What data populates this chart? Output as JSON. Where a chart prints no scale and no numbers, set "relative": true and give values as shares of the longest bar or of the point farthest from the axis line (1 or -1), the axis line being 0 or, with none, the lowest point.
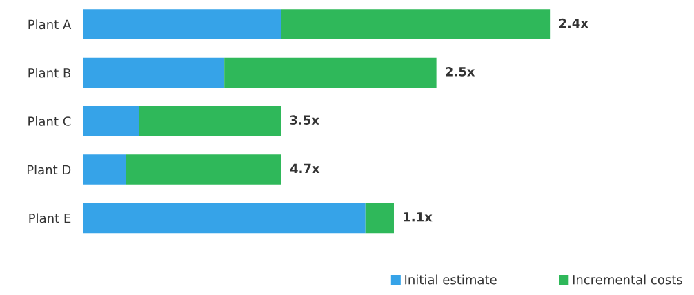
{
  "chart_data": {
    "type": "bar",
    "orientation": "horizontal",
    "stacked": true,
    "relative": true,
    "categories": [
      "Plant A",
      "Plant B",
      "Plant C",
      "Plant D",
      "Plant E"
    ],
    "series": [
      {
        "name": "Initial estimate",
        "color": "#36a3e8",
        "values": [
          0.425,
          0.303,
          0.121,
          0.092,
          0.605
        ]
      },
      {
        "name": "Incremental costs",
        "color": "#2fb85a",
        "values": [
          0.575,
          0.454,
          0.303,
          0.333,
          0.061
        ]
      }
    ],
    "annotations": [
      {
        "text": "2.4x",
        "x": 1.0,
        "y": "Plant A"
      },
      {
        "text": "2.5x",
        "x": 0.757,
        "y": "Plant B"
      },
      {
        "text": "3.5x",
        "x": 0.424,
        "y": "Plant C"
      },
      {
        "text": "4.7x",
        "x": 0.425,
        "y": "Plant D"
      },
      {
        "text": "1.1x",
        "x": 0.666,
        "y": "Plant E"
      }
    ],
    "legend": "bottom right",
    "grid": false
  }
}
